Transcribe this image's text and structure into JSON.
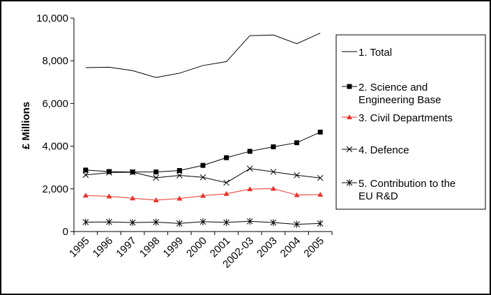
{
  "chart_data": {
    "type": "line",
    "ylabel": "£ Millions",
    "xlabel": "",
    "title": "",
    "ylim": [
      0,
      10000
    ],
    "yticks": [
      "0",
      "2,000",
      "4,000",
      "6,000",
      "8,000",
      "10,000"
    ],
    "categories": [
      "1995",
      "1996",
      "1997",
      "1998",
      "1999",
      "2000",
      "2001",
      "2002-03",
      "2003",
      "2004",
      "2005"
    ],
    "legend_position": "right",
    "grid": false,
    "series": [
      {
        "name": "1. Total",
        "color": "#000000",
        "marker": "none",
        "values": [
          7680,
          7700,
          7540,
          7220,
          7420,
          7780,
          7960,
          9180,
          9210,
          8800,
          9300
        ]
      },
      {
        "name": "2. Science and Engineering Base",
        "color": "#000000",
        "marker": "square",
        "values": [
          2880,
          2810,
          2790,
          2790,
          2860,
          3100,
          3460,
          3760,
          3970,
          4160,
          4660
        ]
      },
      {
        "name": "3. Civil Departments",
        "color": "#e8332a",
        "marker": "triangle",
        "values": [
          1690,
          1650,
          1560,
          1470,
          1550,
          1680,
          1770,
          1990,
          2010,
          1710,
          1730
        ]
      },
      {
        "name": "4. Defence",
        "color": "#000000",
        "marker": "x",
        "values": [
          2650,
          2760,
          2780,
          2520,
          2630,
          2540,
          2290,
          2950,
          2800,
          2640,
          2510
        ]
      },
      {
        "name": "5. Contribution to the EU R&D",
        "color": "#000000",
        "marker": "star",
        "values": [
          440,
          450,
          420,
          440,
          380,
          460,
          430,
          480,
          420,
          340,
          380
        ]
      }
    ]
  },
  "legend": {
    "item1": "1. Total",
    "item2_line1": "2. Science and",
    "item2_line2": "Engineering Base",
    "item3": "3. Civil Departments",
    "item4": "4. Defence",
    "item5_line1": "5. Contribution to the",
    "item5_line2": "EU R&D"
  }
}
